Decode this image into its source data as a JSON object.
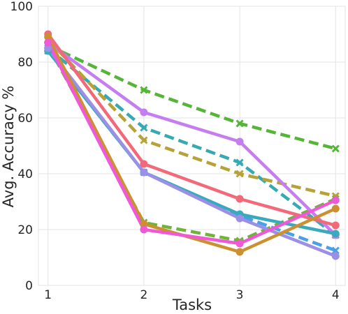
{
  "chart_data": {
    "type": "line",
    "xlabel": "Tasks",
    "ylabel": "Avg. Accuracy %",
    "x": [
      1,
      2,
      3,
      4
    ],
    "xticks": [
      "1",
      "2",
      "3",
      "4"
    ],
    "yticks": [
      "0",
      "20",
      "40",
      "60",
      "80",
      "100"
    ],
    "ylim": [
      0,
      100
    ],
    "grid": true,
    "legend": "none",
    "series": [
      {
        "values": [
          86,
          70,
          58,
          49
        ],
        "color": "#55b537",
        "dash": true,
        "marker": "x"
      },
      {
        "values": [
          85,
          56.5,
          44,
          18
        ],
        "color": "#36aab2",
        "dash": true,
        "marker": "x"
      },
      {
        "values": [
          88,
          52,
          40,
          32
        ],
        "color": "#b5a238",
        "dash": true,
        "marker": "x"
      },
      {
        "values": [
          86,
          22.5,
          16,
          31
        ],
        "color": "#6fb338",
        "dash": true,
        "marker": "x"
      },
      {
        "values": [
          84,
          40.5,
          25,
          12.5
        ],
        "color": "#4aa0e6",
        "dash": true,
        "marker": "x"
      },
      {
        "values": [
          87,
          62,
          51.5,
          18
        ],
        "color": "#c57ef0",
        "dash": false,
        "marker": "o"
      },
      {
        "values": [
          90,
          43.5,
          31,
          21.5
        ],
        "color": "#f2697a",
        "dash": false,
        "marker": "o"
      },
      {
        "values": [
          84,
          40.5,
          25.5,
          18.5
        ],
        "color": "#39a9bd",
        "dash": false,
        "marker": "o"
      },
      {
        "values": [
          85,
          40.5,
          24,
          10.5
        ],
        "color": "#9c8fe6",
        "dash": false,
        "marker": "o"
      },
      {
        "values": [
          89,
          22,
          12,
          27.5
        ],
        "color": "#cc9030",
        "dash": false,
        "marker": "o"
      },
      {
        "values": [
          87,
          20,
          15,
          30.5
        ],
        "color": "#ef58d6",
        "dash": false,
        "marker": "o"
      }
    ]
  }
}
